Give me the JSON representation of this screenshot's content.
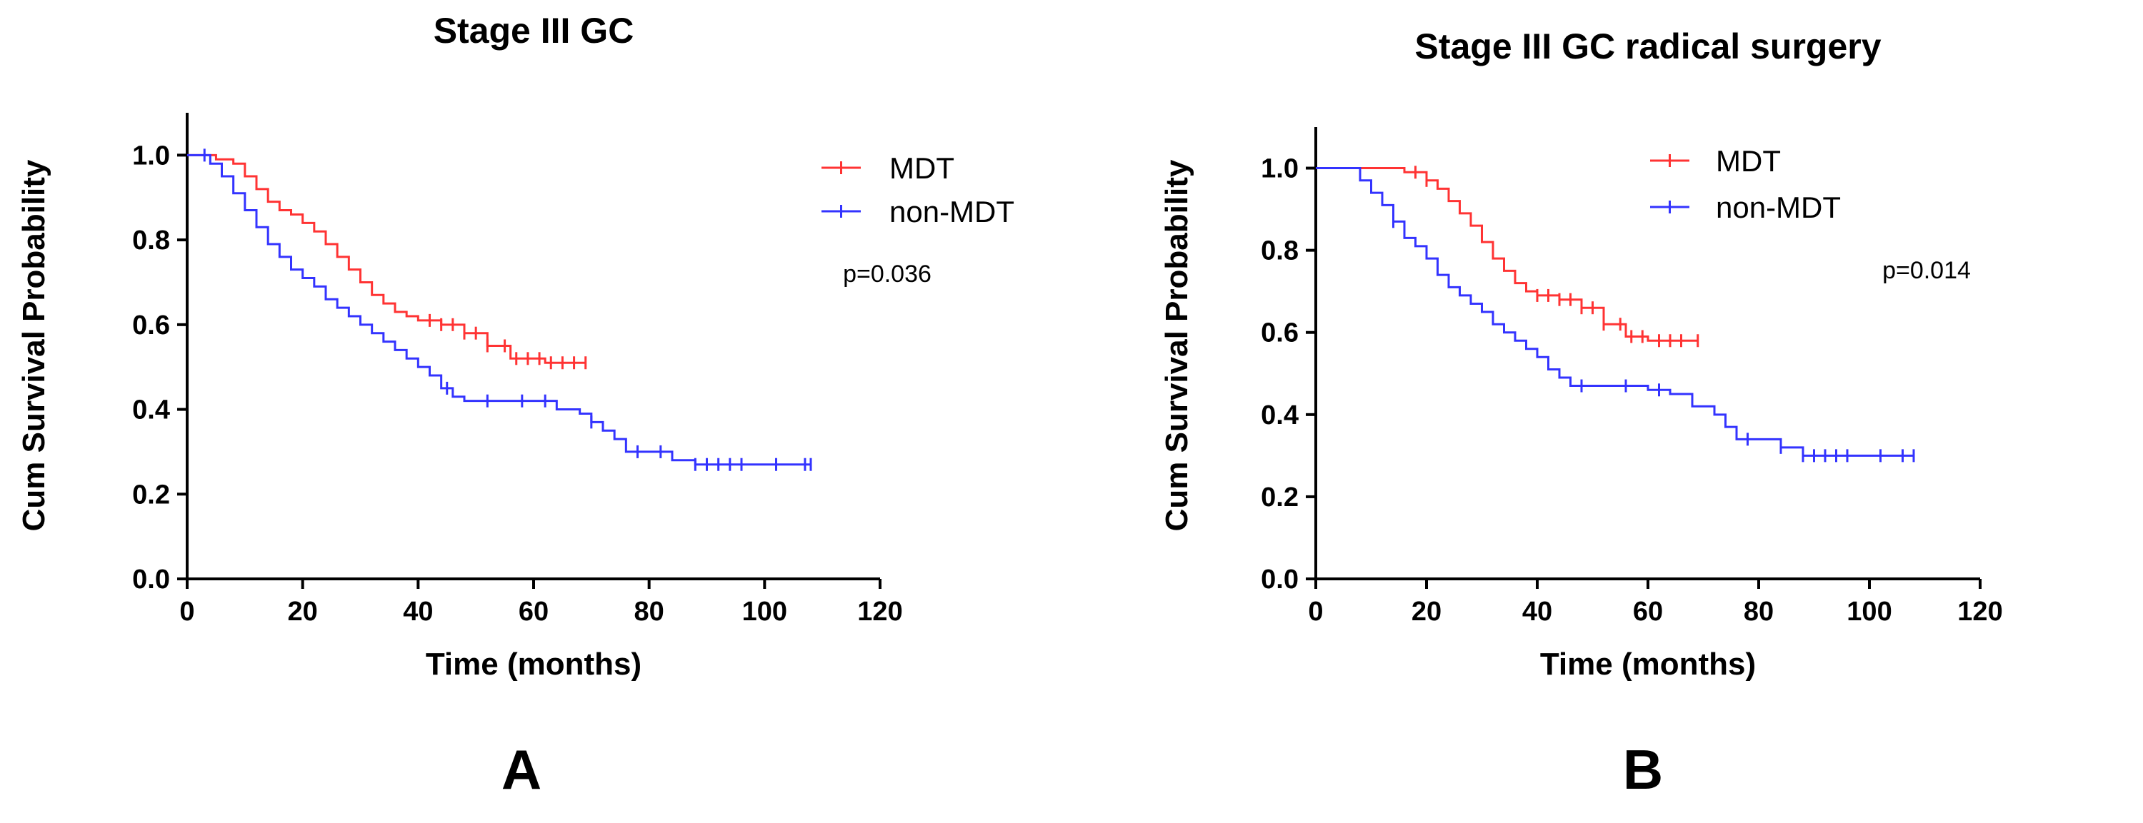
{
  "chart_data": [
    {
      "type": "line",
      "subtype": "kaplan-meier",
      "panel_label": "A",
      "title": "Stage III GC",
      "xlabel": "Time (months)",
      "ylabel": "Cum Survival Probability",
      "xlim": [
        0,
        120
      ],
      "ylim": [
        0,
        1.1
      ],
      "xticks": [
        "0",
        "20",
        "40",
        "60",
        "80",
        "100",
        "120"
      ],
      "yticks": [
        "0.0",
        "0.2",
        "0.4",
        "0.6",
        "0.8",
        "1.0"
      ],
      "legend_position": "top-right",
      "annotation": "p=0.036",
      "series": [
        {
          "name": "MDT",
          "color": "#ff3333",
          "x": [
            0,
            2,
            5,
            8,
            10,
            12,
            14,
            16,
            18,
            20,
            22,
            24,
            26,
            28,
            30,
            32,
            34,
            36,
            38,
            40,
            44,
            48,
            52,
            56,
            62,
            69
          ],
          "y": [
            1.0,
            1.0,
            0.99,
            0.98,
            0.95,
            0.92,
            0.89,
            0.87,
            0.86,
            0.84,
            0.82,
            0.79,
            0.76,
            0.73,
            0.7,
            0.67,
            0.65,
            0.63,
            0.62,
            0.61,
            0.6,
            0.58,
            0.55,
            0.52,
            0.51,
            0.51
          ],
          "censor_x": [
            42,
            44,
            46,
            48,
            50,
            52,
            55,
            57,
            59,
            61,
            63,
            65,
            67,
            69
          ]
        },
        {
          "name": "non-MDT",
          "color": "#3333ff",
          "x": [
            0,
            2,
            4,
            6,
            8,
            10,
            12,
            14,
            16,
            18,
            20,
            22,
            24,
            26,
            28,
            30,
            32,
            34,
            36,
            38,
            40,
            42,
            44,
            46,
            48,
            50,
            55,
            60,
            64,
            66,
            68,
            70,
            72,
            74,
            76,
            80,
            84,
            88,
            100,
            108
          ],
          "y": [
            1.0,
            1.0,
            0.98,
            0.95,
            0.91,
            0.87,
            0.83,
            0.79,
            0.76,
            0.73,
            0.71,
            0.69,
            0.66,
            0.64,
            0.62,
            0.6,
            0.58,
            0.56,
            0.54,
            0.52,
            0.5,
            0.48,
            0.45,
            0.43,
            0.42,
            0.42,
            0.42,
            0.42,
            0.4,
            0.4,
            0.39,
            0.37,
            0.35,
            0.33,
            0.3,
            0.3,
            0.28,
            0.27,
            0.27,
            0.27
          ],
          "censor_x": [
            3,
            45,
            52,
            58,
            62,
            70,
            78,
            82,
            88,
            90,
            92,
            94,
            96,
            102,
            107,
            108
          ]
        }
      ]
    },
    {
      "type": "line",
      "subtype": "kaplan-meier",
      "panel_label": "B",
      "title": "Stage III GC radical surgery",
      "xlabel": "Time (months)",
      "ylabel": "Cum Survival Probability",
      "xlim": [
        0,
        120
      ],
      "ylim": [
        0,
        1.1
      ],
      "xticks": [
        "0",
        "20",
        "40",
        "60",
        "80",
        "100",
        "120"
      ],
      "yticks": [
        "0.0",
        "0.2",
        "0.4",
        "0.6",
        "0.8",
        "1.0"
      ],
      "legend_position": "top-right",
      "annotation": "p=0.014",
      "series": [
        {
          "name": "MDT",
          "color": "#ff3333",
          "x": [
            0,
            12,
            16,
            20,
            22,
            24,
            26,
            28,
            30,
            32,
            34,
            36,
            38,
            40,
            44,
            48,
            52,
            56,
            60,
            69
          ],
          "y": [
            1.0,
            1.0,
            0.99,
            0.97,
            0.95,
            0.92,
            0.89,
            0.86,
            0.82,
            0.78,
            0.75,
            0.72,
            0.7,
            0.69,
            0.68,
            0.66,
            0.62,
            0.59,
            0.58,
            0.58
          ],
          "censor_x": [
            18,
            20,
            40,
            42,
            44,
            46,
            48,
            50,
            52,
            55,
            57,
            59,
            62,
            64,
            66,
            69
          ]
        },
        {
          "name": "non-MDT",
          "color": "#3333ff",
          "x": [
            0,
            6,
            8,
            10,
            12,
            14,
            16,
            18,
            20,
            22,
            24,
            26,
            28,
            30,
            32,
            34,
            36,
            38,
            40,
            42,
            44,
            46,
            48,
            55,
            60,
            64,
            68,
            72,
            74,
            76,
            80,
            84,
            88,
            100,
            108
          ],
          "y": [
            1.0,
            1.0,
            0.97,
            0.94,
            0.91,
            0.87,
            0.83,
            0.81,
            0.78,
            0.74,
            0.71,
            0.69,
            0.67,
            0.65,
            0.62,
            0.6,
            0.58,
            0.56,
            0.54,
            0.51,
            0.49,
            0.47,
            0.47,
            0.47,
            0.46,
            0.45,
            0.42,
            0.4,
            0.37,
            0.34,
            0.34,
            0.32,
            0.3,
            0.3,
            0.3
          ],
          "censor_x": [
            14,
            48,
            56,
            62,
            78,
            84,
            88,
            90,
            92,
            94,
            96,
            102,
            106,
            108
          ]
        }
      ]
    }
  ]
}
